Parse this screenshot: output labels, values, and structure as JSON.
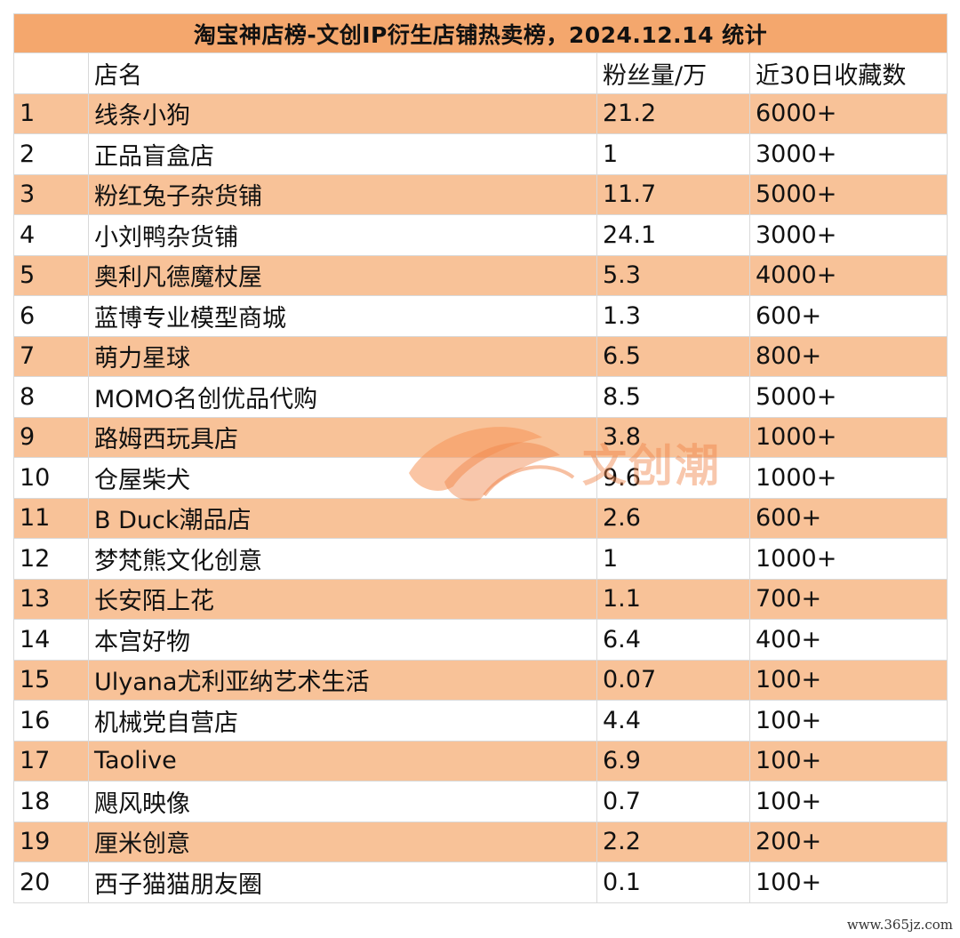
{
  "table": {
    "title": "淘宝神店榜-文创IP衍生店铺热卖榜，2024.12.14 统计",
    "headers": [
      "",
      "店名",
      "粉丝量/万",
      "近30日收藏数"
    ],
    "rows": [
      [
        "1",
        "线条小狗",
        "21.2",
        "6000+"
      ],
      [
        "2",
        "正品盲盒店",
        "1",
        "3000+"
      ],
      [
        "3",
        "粉红兔子杂货铺",
        "11.7",
        "5000+"
      ],
      [
        "4",
        "小刘鸭杂货铺",
        "24.1",
        "3000+"
      ],
      [
        "5",
        "奥利凡德魔杖屋",
        "5.3",
        "4000+"
      ],
      [
        "6",
        "蓝博专业模型商城",
        "1.3",
        "600+"
      ],
      [
        "7",
        "萌力星球",
        "6.5",
        "800+"
      ],
      [
        "8",
        "MOMO名创优品代购",
        "8.5",
        "5000+"
      ],
      [
        "9",
        "路姆西玩具店",
        "3.8",
        "1000+"
      ],
      [
        "10",
        "仓屋柴犬",
        "9.6",
        "1000+"
      ],
      [
        "11",
        "B Duck潮品店",
        "2.6",
        "600+"
      ],
      [
        "12",
        "梦梵熊文化创意",
        "1",
        "1000+"
      ],
      [
        "13",
        "长安陌上花",
        "1.1",
        "700+"
      ],
      [
        "14",
        "本宫好物",
        "6.4",
        "400+"
      ],
      [
        "15",
        "Ulyana尤利亚纳艺术生活",
        "0.07",
        "100+"
      ],
      [
        "16",
        "机械党自营店",
        "4.4",
        "100+"
      ],
      [
        "17",
        "Taolive",
        "6.9",
        "100+"
      ],
      [
        "18",
        "飓风映像",
        "0.7",
        "100+"
      ],
      [
        "19",
        "厘米创意",
        "2.2",
        "200+"
      ],
      [
        "20",
        "西子猫猫朋友圈",
        "0.1",
        "100+"
      ]
    ]
  },
  "watermark": {
    "text": "文创潮",
    "color": "#f08246"
  },
  "site": {
    "text": "www.365jz.com"
  },
  "colors": {
    "title_bg": "#f4a76d",
    "stripe_bg": "#f8c298",
    "border": "#d9d9d9"
  }
}
